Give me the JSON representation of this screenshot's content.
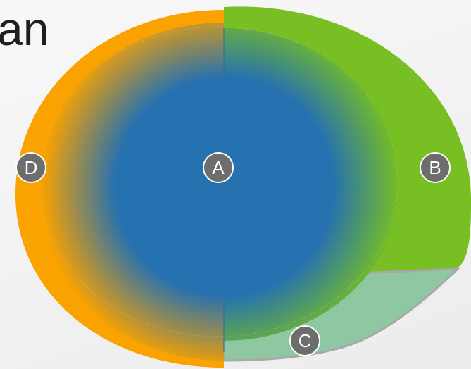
{
  "heading": {
    "fragment": "an"
  },
  "diagram": {
    "regions": [
      {
        "id": "A",
        "label": "A",
        "color": "#2671b0"
      },
      {
        "id": "B",
        "label": "B",
        "color": "#77bf22"
      },
      {
        "id": "C",
        "label": "C",
        "color": "#90c7a3"
      },
      {
        "id": "D",
        "label": "D",
        "color": "#f9a200"
      }
    ],
    "marker_color": "#6d6d6d"
  }
}
